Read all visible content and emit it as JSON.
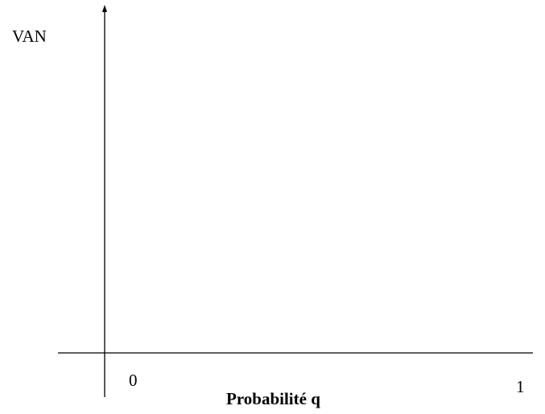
{
  "chart_data": {
    "type": "line",
    "title": "",
    "ylabel": "VAN",
    "xlabel": "Probabilité q",
    "xlim": [
      0,
      1
    ],
    "x_tick_labels": [
      {
        "value": 0,
        "label": "0"
      },
      {
        "value": 1,
        "label": "1"
      }
    ],
    "series": [],
    "grid": false,
    "legend": "none",
    "colors": {
      "axis": "#000000",
      "text": "#000000",
      "background": "#ffffff"
    }
  }
}
